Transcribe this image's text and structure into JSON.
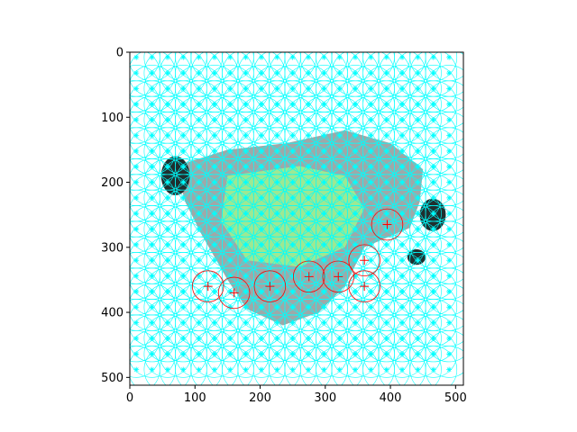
{
  "chart_data": {
    "type": "image",
    "title": "",
    "xlabel": "",
    "ylabel": "",
    "xlim": [
      0,
      512
    ],
    "ylim": [
      512,
      0
    ],
    "x_ticks": [
      0,
      100,
      200,
      300,
      400,
      500
    ],
    "y_ticks": [
      0,
      100,
      200,
      300,
      400,
      500
    ],
    "grid": false,
    "legend": "none",
    "colors": {
      "keypoint_circle": "#00ffff",
      "highlight_circle": "#ff0000",
      "object_dark": "#1f2f2f",
      "object_gray": "#8c9a9a",
      "object_green": "#9cff8c"
    },
    "keypoint_grid": {
      "x_start": 10,
      "x_step": 24,
      "x_count": 21,
      "y_start": 8,
      "y_step": 24,
      "y_count": 21,
      "radius": 36
    },
    "highlight_points": [
      {
        "x": 275,
        "y": 345
      },
      {
        "x": 320,
        "y": 345
      },
      {
        "x": 360,
        "y": 360
      },
      {
        "x": 360,
        "y": 320
      },
      {
        "x": 395,
        "y": 265
      },
      {
        "x": 120,
        "y": 360
      },
      {
        "x": 160,
        "y": 370
      },
      {
        "x": 215,
        "y": 360
      }
    ]
  }
}
